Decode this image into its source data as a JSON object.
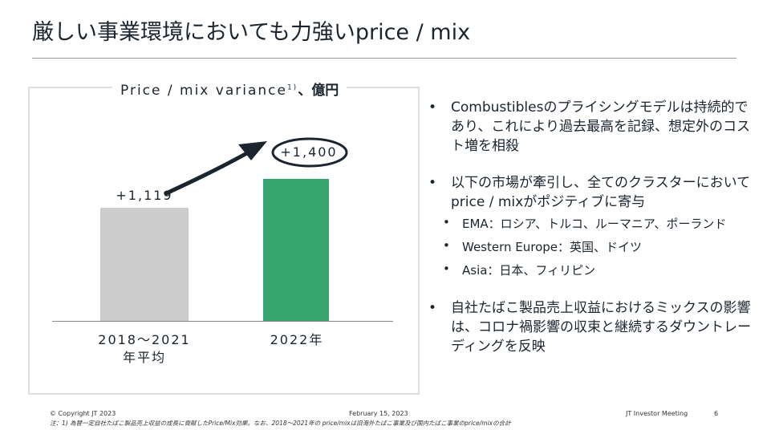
{
  "title": "厳しい事業環境においても力強いprice / mix",
  "chart": {
    "title": "Price / mix variance",
    "footnote_mark": "1)",
    "unit": "、億円"
  },
  "chart_data": {
    "type": "bar",
    "categories": [
      "2018～2021 年平均",
      "2022年"
    ],
    "values": [
      1119,
      1400
    ],
    "value_labels": [
      "+1,119",
      "+1,400"
    ],
    "category_line1": [
      "2018～2021",
      "2022年"
    ],
    "category_line2": [
      "年平均",
      ""
    ],
    "colors": [
      "#cccccc",
      "#37a56f"
    ]
  },
  "bullets": [
    "Combustiblesのプライシングモデルは持続的であり、これにより過去最高を記録、想定外のコスト増を相殺",
    "以下の市場が牽引し、全てのクラスターにおいてprice / mixがポジティブに寄与",
    "自社たばこ製品売上収益におけるミックスの影響は、コロナ禍影響の収束と継続するダウントレーディングを反映"
  ],
  "sub_bullets": [
    "EMA：ロシア、トルコ、ルーマニア、ポーランド",
    "Western Europe：英国、ドイツ",
    "Asia：日本、フィリピン"
  ],
  "footer": {
    "copyright": "© Copyright JT 2023",
    "date": "February 15, 2023",
    "event": "JT Investor Meeting",
    "page": "6",
    "note": "注：1) 為替一定自社たばこ製品売上収益の成長に貢献したPrice/Mix効果。なお、2018～2021年の price/mixは旧海外たばこ事業及び国内たばこ事業のprice/mixの合計"
  }
}
